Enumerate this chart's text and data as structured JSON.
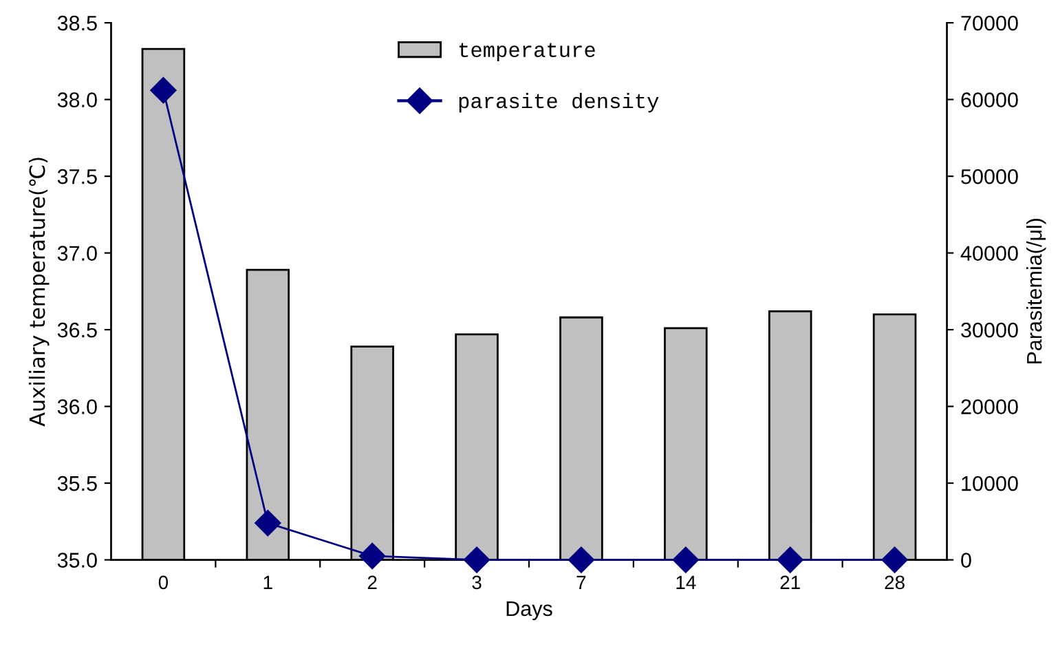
{
  "chart_data": {
    "type": "bar",
    "xlabel": "Days",
    "ylabel": "Auxiliary temperature(℃)",
    "y2label": "Parasitemia(/μl)",
    "categories": [
      "0",
      "1",
      "2",
      "3",
      "7",
      "14",
      "21",
      "28"
    ],
    "series": [
      {
        "name": "temperature",
        "color": "#c0c0c0",
        "values": [
          38.33,
          36.89,
          36.39,
          36.47,
          36.58,
          36.51,
          36.62,
          36.6
        ]
      },
      {
        "name": "parasite density",
        "type": "line",
        "axis": "y2",
        "color": "#000080",
        "marker": "diamond",
        "values": [
          61200,
          4800,
          500,
          0,
          0,
          0,
          0,
          0
        ]
      }
    ],
    "ylim": [
      35.0,
      38.5
    ],
    "yticks": [
      {
        "value": 35.0,
        "label": "35.0"
      },
      {
        "value": 35.5,
        "label": "35.5"
      },
      {
        "value": 36.0,
        "label": "36.0"
      },
      {
        "value": 36.5,
        "label": "36.5"
      },
      {
        "value": 37.0,
        "label": "37.0"
      },
      {
        "value": 37.5,
        "label": "37.5"
      },
      {
        "value": 38.0,
        "label": "38.0"
      },
      {
        "value": 38.5,
        "label": "38.5"
      }
    ],
    "y2lim": [
      0,
      70000
    ],
    "y2ticks": [
      0,
      10000,
      20000,
      30000,
      40000,
      50000,
      60000,
      70000
    ],
    "grid": false,
    "legend": "top"
  }
}
